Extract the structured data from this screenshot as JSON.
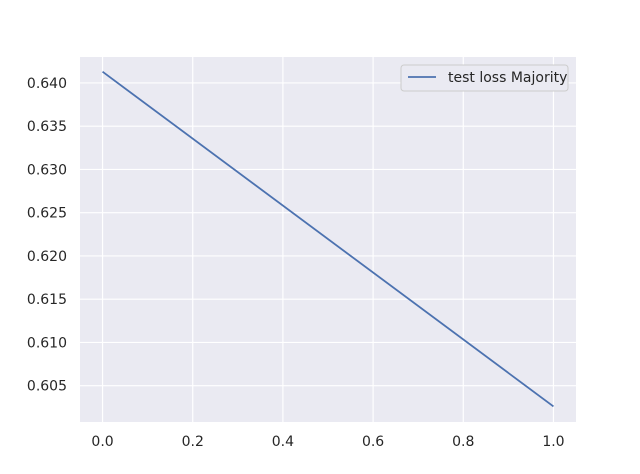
{
  "chart_data": {
    "type": "line",
    "title": "",
    "xlabel": "",
    "ylabel": "",
    "xlim": [
      -0.05,
      1.05
    ],
    "ylim": [
      0.6008,
      0.643
    ],
    "xticks": [
      0.0,
      0.2,
      0.4,
      0.6,
      0.8,
      1.0
    ],
    "xtick_labels": [
      "0.0",
      "0.2",
      "0.4",
      "0.6",
      "0.8",
      "1.0"
    ],
    "yticks": [
      0.605,
      0.61,
      0.615,
      0.62,
      0.625,
      0.63,
      0.635,
      0.64
    ],
    "ytick_labels": [
      "0.605",
      "0.610",
      "0.615",
      "0.620",
      "0.625",
      "0.630",
      "0.635",
      "0.640"
    ],
    "grid": true,
    "legend_position": "top-right",
    "colors": {
      "plot_background": "#eaeaf2",
      "grid": "#ffffff",
      "series": "#4c72b0",
      "legend_border": "#cccccc",
      "legend_background": "#eaeaf2"
    },
    "series": [
      {
        "name": "test loss Majority",
        "x": [
          0.0,
          1.0
        ],
        "y": [
          0.6413,
          0.6026
        ]
      }
    ]
  }
}
